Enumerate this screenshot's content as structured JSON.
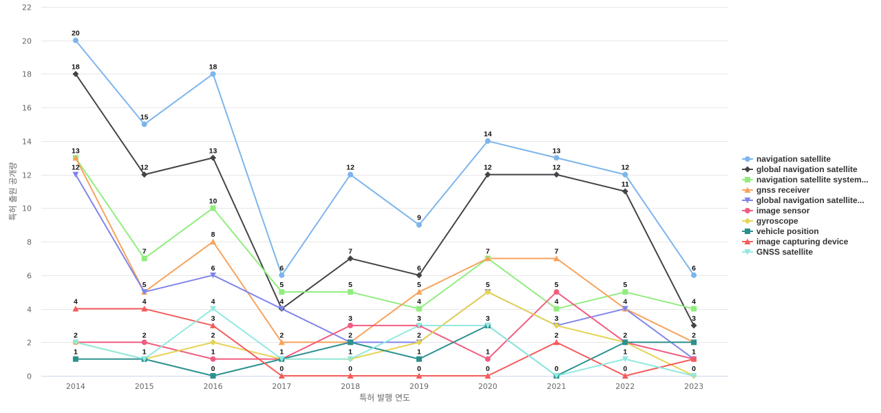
{
  "chart_data": {
    "type": "line",
    "xlabel": "특허 발행 연도",
    "ylabel": "특허 출원 공개량",
    "ylim": [
      0,
      22
    ],
    "yticks": [
      0,
      2,
      4,
      6,
      8,
      10,
      12,
      14,
      16,
      18,
      20,
      22
    ],
    "grid": true,
    "legend_position": "right",
    "x": [
      "2014",
      "2015",
      "2016",
      "2017",
      "2018",
      "2019",
      "2020",
      "2021",
      "2022",
      "2023"
    ],
    "series": [
      {
        "name": "navigation satellite",
        "color": "#7cb5ec",
        "marker": "circle",
        "values": [
          20,
          15,
          18,
          6,
          12,
          9,
          14,
          13,
          12,
          6
        ]
      },
      {
        "name": "global navigation satellite",
        "color": "#434348",
        "marker": "diamond",
        "values": [
          18,
          12,
          13,
          4,
          7,
          6,
          12,
          12,
          11,
          3
        ]
      },
      {
        "name": "navigation satellite system...",
        "color": "#90ed7d",
        "marker": "square",
        "values": [
          13,
          7,
          10,
          5,
          5,
          4,
          7,
          4,
          5,
          4
        ]
      },
      {
        "name": "gnss receiver",
        "color": "#f7a35c",
        "marker": "triangle",
        "values": [
          13,
          5,
          8,
          2,
          2,
          5,
          7,
          7,
          4,
          2
        ]
      },
      {
        "name": "global navigation satellite...",
        "color": "#8085e9",
        "marker": "triangle-down",
        "values": [
          12,
          5,
          6,
          4,
          2,
          2,
          5,
          3,
          4,
          1
        ]
      },
      {
        "name": "image sensor",
        "color": "#f15c80",
        "marker": "circle",
        "values": [
          2,
          2,
          1,
          1,
          3,
          3,
          1,
          5,
          2,
          1
        ]
      },
      {
        "name": "gyroscope",
        "color": "#e4d354",
        "marker": "diamond",
        "values": [
          2,
          1,
          2,
          1,
          1,
          2,
          5,
          3,
          2,
          0
        ]
      },
      {
        "name": "vehicle position",
        "color": "#2b908f",
        "marker": "square",
        "values": [
          1,
          1,
          0,
          1,
          2,
          1,
          3,
          0,
          2,
          2
        ]
      },
      {
        "name": "image capturing device",
        "color": "#f45b5b",
        "marker": "triangle",
        "values": [
          4,
          4,
          3,
          0,
          0,
          0,
          0,
          2,
          0,
          1
        ]
      },
      {
        "name": "GNSS satellite",
        "color": "#91e8e1",
        "marker": "triangle-down",
        "values": [
          2,
          1,
          4,
          1,
          1,
          3,
          3,
          0,
          1,
          0
        ]
      }
    ],
    "data_labels": [
      {
        "x": "2014",
        "values": [
          20,
          18,
          13,
          12,
          4,
          2,
          1
        ]
      },
      {
        "x": "2015",
        "values": [
          15,
          12,
          7,
          5,
          4,
          2,
          1
        ]
      },
      {
        "x": "2016",
        "values": [
          18,
          13,
          10,
          8,
          6,
          4,
          3,
          2,
          1,
          0
        ]
      },
      {
        "x": "2017",
        "values": [
          6,
          5,
          4,
          2,
          1,
          0
        ]
      },
      {
        "x": "2018",
        "values": [
          12,
          7,
          5,
          3,
          2,
          1,
          0
        ]
      },
      {
        "x": "2019",
        "values": [
          9,
          6,
          5,
          4,
          3,
          2,
          1,
          0
        ]
      },
      {
        "x": "2020",
        "values": [
          14,
          12,
          7,
          5,
          3,
          1,
          0
        ]
      },
      {
        "x": "2021",
        "values": [
          13,
          12,
          7,
          5,
          4,
          3,
          2,
          0
        ]
      },
      {
        "x": "2022",
        "values": [
          12,
          11,
          5,
          4,
          2,
          1,
          0
        ]
      },
      {
        "x": "2023",
        "values": [
          6,
          4,
          3,
          2,
          1,
          0
        ]
      }
    ]
  }
}
